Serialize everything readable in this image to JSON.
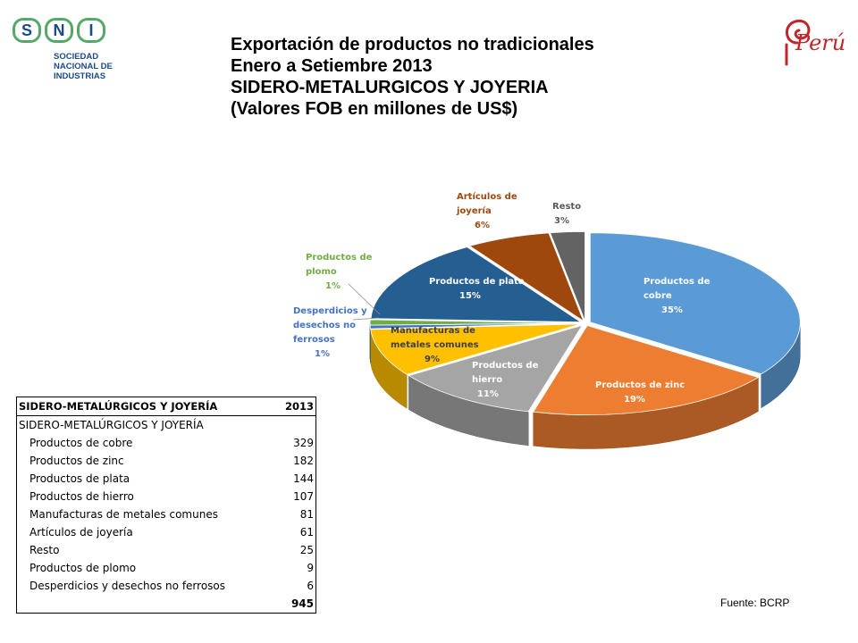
{
  "logo": {
    "letters": [
      "S",
      "N",
      "I"
    ],
    "org_lines": [
      "SOCIEDAD",
      "NACIONAL DE",
      "INDUSTRIAS"
    ],
    "brand": "Perú",
    "colors": {
      "sni_green": "#55a868",
      "sni_blue": "#1b4a8a",
      "peru_red": "#c0272d"
    }
  },
  "title": {
    "line1": "Exportación de productos no tradicionales",
    "line2": "Enero a Setiembre 2013",
    "line3": "SIDERO-METALURGICOS Y JOYERIA",
    "line4": "(Valores FOB en millones de US$)"
  },
  "chart_data": {
    "type": "pie",
    "style": "3d-exploded",
    "slices": [
      {
        "label": "Productos de cobre",
        "percent": "35%",
        "value": 329,
        "color": "#5b9bd5",
        "label_color": "#ffffff"
      },
      {
        "label": "Productos de zinc",
        "percent": "19%",
        "value": 182,
        "color": "#ed7d31",
        "label_color": "#ffffff"
      },
      {
        "label": "Productos de hierro",
        "percent": "11%",
        "value": 107,
        "color": "#a5a5a5",
        "label_color": "#ffffff"
      },
      {
        "label": "Manufacturas de metales comunes",
        "percent": "9%",
        "value": 81,
        "color": "#ffc000",
        "label_color": "#404040"
      },
      {
        "label": "Desperdicios y desechos no ferrosos",
        "percent": "1%",
        "value": 6,
        "color": "#4472c4",
        "label_color": "#4472c4"
      },
      {
        "label": "Productos de plomo",
        "percent": "1%",
        "value": 9,
        "color": "#70ad47",
        "label_color": "#70ad47"
      },
      {
        "label": "Productos de plata",
        "percent": "15%",
        "value": 144,
        "color": "#255e91",
        "label_color": "#ffffff"
      },
      {
        "label": "Artículos de joyería",
        "percent": "6%",
        "value": 61,
        "color": "#9e480e",
        "label_color": "#9e480e"
      },
      {
        "label": "Resto",
        "percent": "3%",
        "value": 25,
        "color": "#636363",
        "label_color": "#595959"
      }
    ]
  },
  "table": {
    "header": {
      "label": "SIDERO-METALÚRGICOS Y JOYERÍA",
      "year": "2013"
    },
    "group_label": "SIDERO-METALÚRGICOS Y JOYERÍA",
    "rows": [
      {
        "label": "Productos de cobre",
        "value": "329"
      },
      {
        "label": "Productos de zinc",
        "value": "182"
      },
      {
        "label": "Productos de plata",
        "value": "144"
      },
      {
        "label": "Productos de hierro",
        "value": "107"
      },
      {
        "label": "Manufacturas de metales comunes",
        "value": "81"
      },
      {
        "label": "Artículos de joyería",
        "value": "61"
      },
      {
        "label": "Resto",
        "value": "25"
      },
      {
        "label": "Productos de plomo",
        "value": "9"
      },
      {
        "label": "Desperdicios y desechos no ferrosos",
        "value": "6"
      }
    ],
    "total": "945"
  },
  "source": "Fuente: BCRP"
}
